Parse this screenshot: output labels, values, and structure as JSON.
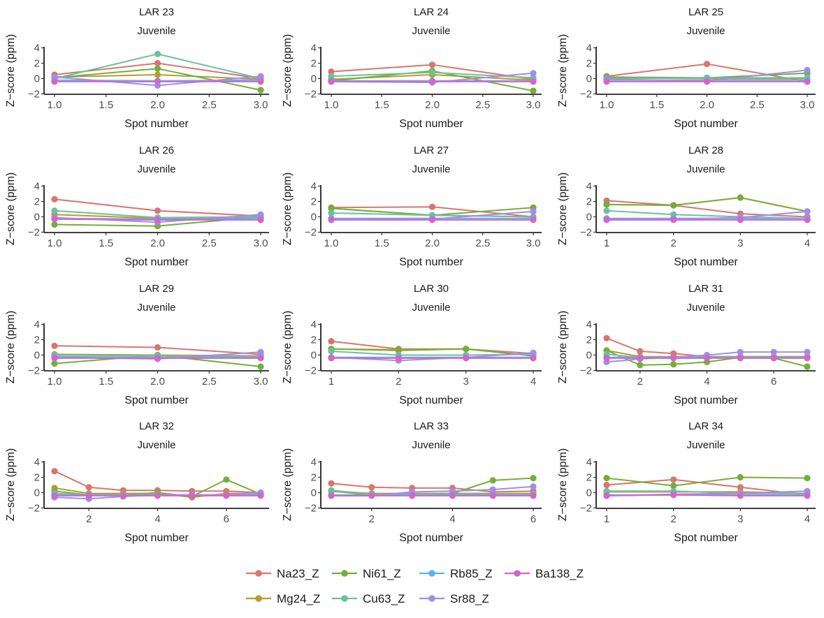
{
  "chart_data": {
    "type": "line",
    "grid": false,
    "xlabel": "Spot number",
    "ylabel": "Z−score (ppm)",
    "ylim": [
      -2,
      4
    ],
    "yticks": [
      -2,
      0,
      2,
      4
    ],
    "subtitle": "Juvenile",
    "legend_position": "bottom",
    "series": [
      {
        "name": "Na23_Z",
        "color": "#D9756F"
      },
      {
        "name": "Mg24_Z",
        "color": "#B79C2D"
      },
      {
        "name": "Ni61_Z",
        "color": "#73AF3A"
      },
      {
        "name": "Cu63_Z",
        "color": "#6CC19A"
      },
      {
        "name": "Rb85_Z",
        "color": "#5EB4E3"
      },
      {
        "name": "Sr88_Z",
        "color": "#A18CED"
      },
      {
        "name": "Ba138_Z",
        "color": "#D565C8"
      }
    ],
    "legend_rows": [
      [
        "Na23_Z",
        "Ni61_Z",
        "Rb85_Z",
        "Ba138_Z"
      ],
      [
        "Mg24_Z",
        "Cu63_Z",
        "Sr88_Z"
      ]
    ],
    "panels": [
      {
        "title": "LAR 23",
        "xlim": [
          1,
          3
        ],
        "xticks": [
          "1.0",
          "1.5",
          "2.0",
          "2.5",
          "3.0"
        ],
        "x": [
          1,
          2,
          3
        ],
        "values": {
          "Na23_Z": [
            0.5,
            2.0,
            0.0
          ],
          "Mg24_Z": [
            0.2,
            0.5,
            -0.1
          ],
          "Ni61_Z": [
            0.1,
            1.3,
            -1.5
          ],
          "Cu63_Z": [
            0.0,
            3.2,
            0.0
          ],
          "Rb85_Z": [
            -0.2,
            -0.3,
            -0.2
          ],
          "Sr88_Z": [
            0.2,
            -0.9,
            0.3
          ],
          "Ba138_Z": [
            -0.4,
            -0.4,
            -0.4
          ]
        }
      },
      {
        "title": "LAR 24",
        "xlim": [
          1,
          3
        ],
        "xticks": [
          "1.0",
          "1.5",
          "2.0",
          "2.5",
          "3.0"
        ],
        "x": [
          1,
          2,
          3
        ],
        "values": {
          "Na23_Z": [
            0.9,
            1.8,
            -0.1
          ],
          "Mg24_Z": [
            -0.1,
            0.5,
            -0.2
          ],
          "Ni61_Z": [
            -0.3,
            1.0,
            -1.6
          ],
          "Cu63_Z": [
            0.3,
            0.8,
            0.1
          ],
          "Rb85_Z": [
            -0.3,
            -0.3,
            -0.3
          ],
          "Sr88_Z": [
            -0.4,
            -0.5,
            0.7
          ],
          "Ba138_Z": [
            -0.4,
            -0.4,
            -0.4
          ]
        }
      },
      {
        "title": "LAR 25",
        "xlim": [
          1,
          3
        ],
        "xticks": [
          "1.0",
          "1.5",
          "2.0",
          "2.5",
          "3.0"
        ],
        "x": [
          1,
          2,
          3
        ],
        "values": {
          "Na23_Z": [
            0.3,
            1.9,
            -0.4
          ],
          "Mg24_Z": [
            0.1,
            0.0,
            0.0
          ],
          "Ni61_Z": [
            0.2,
            0.1,
            0.7
          ],
          "Cu63_Z": [
            0.0,
            0.1,
            0.1
          ],
          "Rb85_Z": [
            -0.2,
            -0.2,
            -0.2
          ],
          "Sr88_Z": [
            -0.1,
            -0.3,
            1.1
          ],
          "Ba138_Z": [
            -0.4,
            -0.4,
            -0.4
          ]
        }
      },
      {
        "title": "LAR 26",
        "xlim": [
          1,
          3
        ],
        "xticks": [
          "1.0",
          "1.5",
          "2.0",
          "2.5",
          "3.0"
        ],
        "x": [
          1,
          2,
          3
        ],
        "values": {
          "Na23_Z": [
            2.3,
            0.8,
            0.1
          ],
          "Mg24_Z": [
            0.3,
            -0.2,
            -0.1
          ],
          "Ni61_Z": [
            -1.0,
            -1.2,
            0.0
          ],
          "Cu63_Z": [
            0.8,
            -0.1,
            0.0
          ],
          "Rb85_Z": [
            -0.2,
            -0.3,
            -0.2
          ],
          "Sr88_Z": [
            -0.1,
            -0.7,
            0.3
          ],
          "Ba138_Z": [
            -0.3,
            -0.4,
            -0.4
          ]
        }
      },
      {
        "title": "LAR 27",
        "xlim": [
          1,
          3
        ],
        "xticks": [
          "1.0",
          "1.5",
          "2.0",
          "2.5",
          "3.0"
        ],
        "x": [
          1,
          2,
          3
        ],
        "values": {
          "Na23_Z": [
            1.2,
            1.3,
            0.0
          ],
          "Mg24_Z": [
            1.1,
            0.2,
            0.0
          ],
          "Ni61_Z": [
            1.1,
            0.2,
            1.2
          ],
          "Cu63_Z": [
            0.5,
            0.2,
            0.0
          ],
          "Rb85_Z": [
            -0.2,
            -0.2,
            -0.2
          ],
          "Sr88_Z": [
            -0.3,
            -0.3,
            0.7
          ],
          "Ba138_Z": [
            -0.4,
            -0.4,
            -0.4
          ]
        }
      },
      {
        "title": "LAR 28",
        "xlim": [
          1,
          4
        ],
        "xticks": [
          "1",
          "2",
          "3",
          "4"
        ],
        "x": [
          1,
          2,
          3,
          4
        ],
        "values": {
          "Na23_Z": [
            2.1,
            1.5,
            0.4,
            0.0
          ],
          "Mg24_Z": [
            1.6,
            1.5,
            2.5,
            0.7
          ],
          "Ni61_Z": [
            1.6,
            1.5,
            2.5,
            0.7
          ],
          "Cu63_Z": [
            0.8,
            0.3,
            0.0,
            -0.2
          ],
          "Rb85_Z": [
            -0.2,
            -0.2,
            -0.2,
            -0.2
          ],
          "Sr88_Z": [
            -0.3,
            -0.3,
            -0.1,
            0.7
          ],
          "Ba138_Z": [
            -0.4,
            -0.4,
            -0.4,
            -0.4
          ]
        }
      },
      {
        "title": "LAR 29",
        "xlim": [
          1,
          3
        ],
        "xticks": [
          "1.0",
          "1.5",
          "2.0",
          "2.5",
          "3.0"
        ],
        "x": [
          1,
          2,
          3
        ],
        "values": {
          "Na23_Z": [
            1.2,
            1.0,
            0.1
          ],
          "Mg24_Z": [
            0.1,
            0.0,
            -0.1
          ],
          "Ni61_Z": [
            -1.1,
            0.0,
            -1.5
          ],
          "Cu63_Z": [
            0.0,
            -0.1,
            -0.2
          ],
          "Rb85_Z": [
            -0.2,
            -0.3,
            -0.3
          ],
          "Sr88_Z": [
            -0.3,
            -0.5,
            0.4
          ],
          "Ba138_Z": [
            -0.4,
            -0.4,
            -0.4
          ]
        }
      },
      {
        "title": "LAR 30",
        "xlim": [
          1,
          4
        ],
        "xticks": [
          "1",
          "2",
          "3",
          "4"
        ],
        "x": [
          1,
          2,
          3,
          4
        ],
        "values": {
          "Na23_Z": [
            1.8,
            0.8,
            0.8,
            0.2
          ],
          "Mg24_Z": [
            0.8,
            0.7,
            0.8,
            -0.1
          ],
          "Ni61_Z": [
            0.8,
            0.6,
            0.8,
            -0.1
          ],
          "Cu63_Z": [
            0.5,
            0.0,
            0.0,
            0.1
          ],
          "Rb85_Z": [
            -0.3,
            -0.3,
            -0.3,
            -0.3
          ],
          "Sr88_Z": [
            -0.3,
            -0.7,
            -0.3,
            0.3
          ],
          "Ba138_Z": [
            -0.4,
            -0.4,
            -0.4,
            -0.4
          ]
        }
      },
      {
        "title": "LAR 31",
        "xlim": [
          1,
          7
        ],
        "xticks": [
          "2",
          "4",
          "6"
        ],
        "x": [
          1,
          2,
          3,
          4,
          5,
          6,
          7
        ],
        "values": {
          "Na23_Z": [
            2.2,
            0.5,
            0.2,
            -0.2,
            -0.2,
            -0.2,
            -0.2
          ],
          "Mg24_Z": [
            0.6,
            -0.2,
            -0.2,
            -0.2,
            -0.2,
            -0.2,
            -0.2
          ],
          "Ni61_Z": [
            0.6,
            -1.3,
            -1.2,
            -0.9,
            -0.3,
            -0.4,
            -1.5
          ],
          "Cu63_Z": [
            0.1,
            -0.3,
            -0.3,
            -0.3,
            -0.3,
            -0.3,
            -0.3
          ],
          "Rb85_Z": [
            -0.3,
            -0.3,
            -0.3,
            -0.3,
            -0.3,
            -0.3,
            -0.3
          ],
          "Sr88_Z": [
            -0.9,
            -0.5,
            -0.3,
            0.0,
            0.4,
            0.4,
            0.4
          ],
          "Ba138_Z": [
            -0.4,
            -0.4,
            -0.4,
            -0.4,
            -0.4,
            -0.4,
            -0.4
          ]
        }
      },
      {
        "title": "LAR 32",
        "xlim": [
          1,
          7
        ],
        "xticks": [
          "2",
          "4",
          "6"
        ],
        "x": [
          1,
          2,
          3,
          4,
          5,
          6,
          7
        ],
        "values": {
          "Na23_Z": [
            2.8,
            0.7,
            0.3,
            0.3,
            0.2,
            0.2,
            0.0
          ],
          "Mg24_Z": [
            0.6,
            -0.1,
            -0.1,
            -0.1,
            -0.6,
            -0.1,
            -0.1
          ],
          "Ni61_Z": [
            0.2,
            -0.3,
            -0.3,
            0.0,
            -0.5,
            1.7,
            -0.2
          ],
          "Cu63_Z": [
            -0.1,
            -0.3,
            -0.3,
            -0.3,
            -0.3,
            -0.3,
            -0.3
          ],
          "Rb85_Z": [
            -0.3,
            -0.3,
            -0.3,
            -0.3,
            -0.3,
            -0.3,
            -0.3
          ],
          "Sr88_Z": [
            -0.6,
            -0.8,
            -0.5,
            -0.3,
            -0.3,
            -0.3,
            0.0
          ],
          "Ba138_Z": [
            -0.4,
            -0.4,
            -0.4,
            -0.4,
            -0.4,
            -0.4,
            -0.4
          ]
        }
      },
      {
        "title": "LAR 33",
        "xlim": [
          1,
          6
        ],
        "xticks": [
          "2",
          "4",
          "6"
        ],
        "x": [
          1,
          2,
          3,
          4,
          5,
          6
        ],
        "values": {
          "Na23_Z": [
            1.2,
            0.7,
            0.6,
            0.6,
            0.1,
            0.2
          ],
          "Mg24_Z": [
            0.2,
            -0.1,
            -0.1,
            -0.1,
            -0.1,
            -0.1
          ],
          "Ni61_Z": [
            0.2,
            -0.3,
            -0.3,
            -0.1,
            1.6,
            1.9
          ],
          "Cu63_Z": [
            0.3,
            -0.2,
            -0.2,
            -0.2,
            -0.2,
            -0.2
          ],
          "Rb85_Z": [
            -0.3,
            -0.3,
            -0.3,
            -0.3,
            -0.3,
            -0.3
          ],
          "Sr88_Z": [
            -0.4,
            -0.4,
            0.1,
            0.2,
            0.4,
            0.8
          ],
          "Ba138_Z": [
            -0.4,
            -0.4,
            -0.4,
            -0.4,
            -0.4,
            -0.4
          ]
        }
      },
      {
        "title": "LAR 34",
        "xlim": [
          1,
          4
        ],
        "xticks": [
          "1",
          "2",
          "3",
          "4"
        ],
        "x": [
          1,
          2,
          3,
          4
        ],
        "values": {
          "Na23_Z": [
            1.0,
            1.7,
            0.7,
            -0.3
          ],
          "Mg24_Z": [
            0.1,
            0.1,
            0.1,
            -0.1
          ],
          "Ni61_Z": [
            1.9,
            0.9,
            2.0,
            1.9
          ],
          "Cu63_Z": [
            0.2,
            0.2,
            -0.1,
            -0.1
          ],
          "Rb85_Z": [
            -0.3,
            -0.3,
            -0.3,
            -0.3
          ],
          "Sr88_Z": [
            -0.4,
            -0.2,
            -0.1,
            0.2
          ],
          "Ba138_Z": [
            -0.4,
            -0.3,
            -0.4,
            -0.4
          ]
        }
      }
    ]
  }
}
